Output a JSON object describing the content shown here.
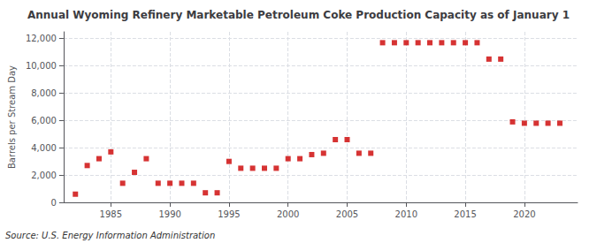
{
  "chart_data": {
    "type": "scatter",
    "title": "Annual Wyoming Refinery Marketable Petroleum Coke Production Capacity as of January 1",
    "ylabel": "Barrels per Stream Day",
    "annotations": [
      "Source: U.S. Energy Information Administration"
    ],
    "x": [
      1982,
      1983,
      1984,
      1985,
      1986,
      1987,
      1988,
      1989,
      1990,
      1991,
      1992,
      1993,
      1994,
      1995,
      1996,
      1997,
      1998,
      1999,
      2000,
      2001,
      2002,
      2003,
      2004,
      2005,
      2006,
      2007,
      2008,
      2009,
      2010,
      2011,
      2012,
      2013,
      2014,
      2015,
      2016,
      2017,
      2018,
      2019,
      2020,
      2021,
      2022,
      2023
    ],
    "values": [
      600,
      2700,
      3200,
      3700,
      1400,
      2200,
      3200,
      1400,
      1400,
      1400,
      1400,
      700,
      700,
      3000,
      2500,
      2500,
      2500,
      2500,
      3200,
      3200,
      3500,
      3600,
      4600,
      4600,
      3600,
      3600,
      11700,
      11700,
      11700,
      11700,
      11700,
      11700,
      11700,
      11700,
      11700,
      10500,
      10500,
      5900,
      5800,
      5800,
      5800,
      5800
    ],
    "color": "#cc0000",
    "marker": "square",
    "xlim": [
      1981,
      2024.5
    ],
    "xticks": [
      1985,
      1990,
      1995,
      2000,
      2005,
      2010,
      2015,
      2020
    ],
    "ylim": [
      0,
      12500
    ],
    "yticks": [
      0,
      {
        "value": 2000,
        "label": "2,000"
      },
      {
        "value": 4000,
        "label": "4,000"
      },
      {
        "value": 6000,
        "label": "6,000"
      },
      {
        "value": 8000,
        "label": "8,000"
      },
      {
        "value": 10000,
        "label": "10,000"
      },
      {
        "value": 12000,
        "label": "12,000"
      }
    ],
    "grid": true
  }
}
